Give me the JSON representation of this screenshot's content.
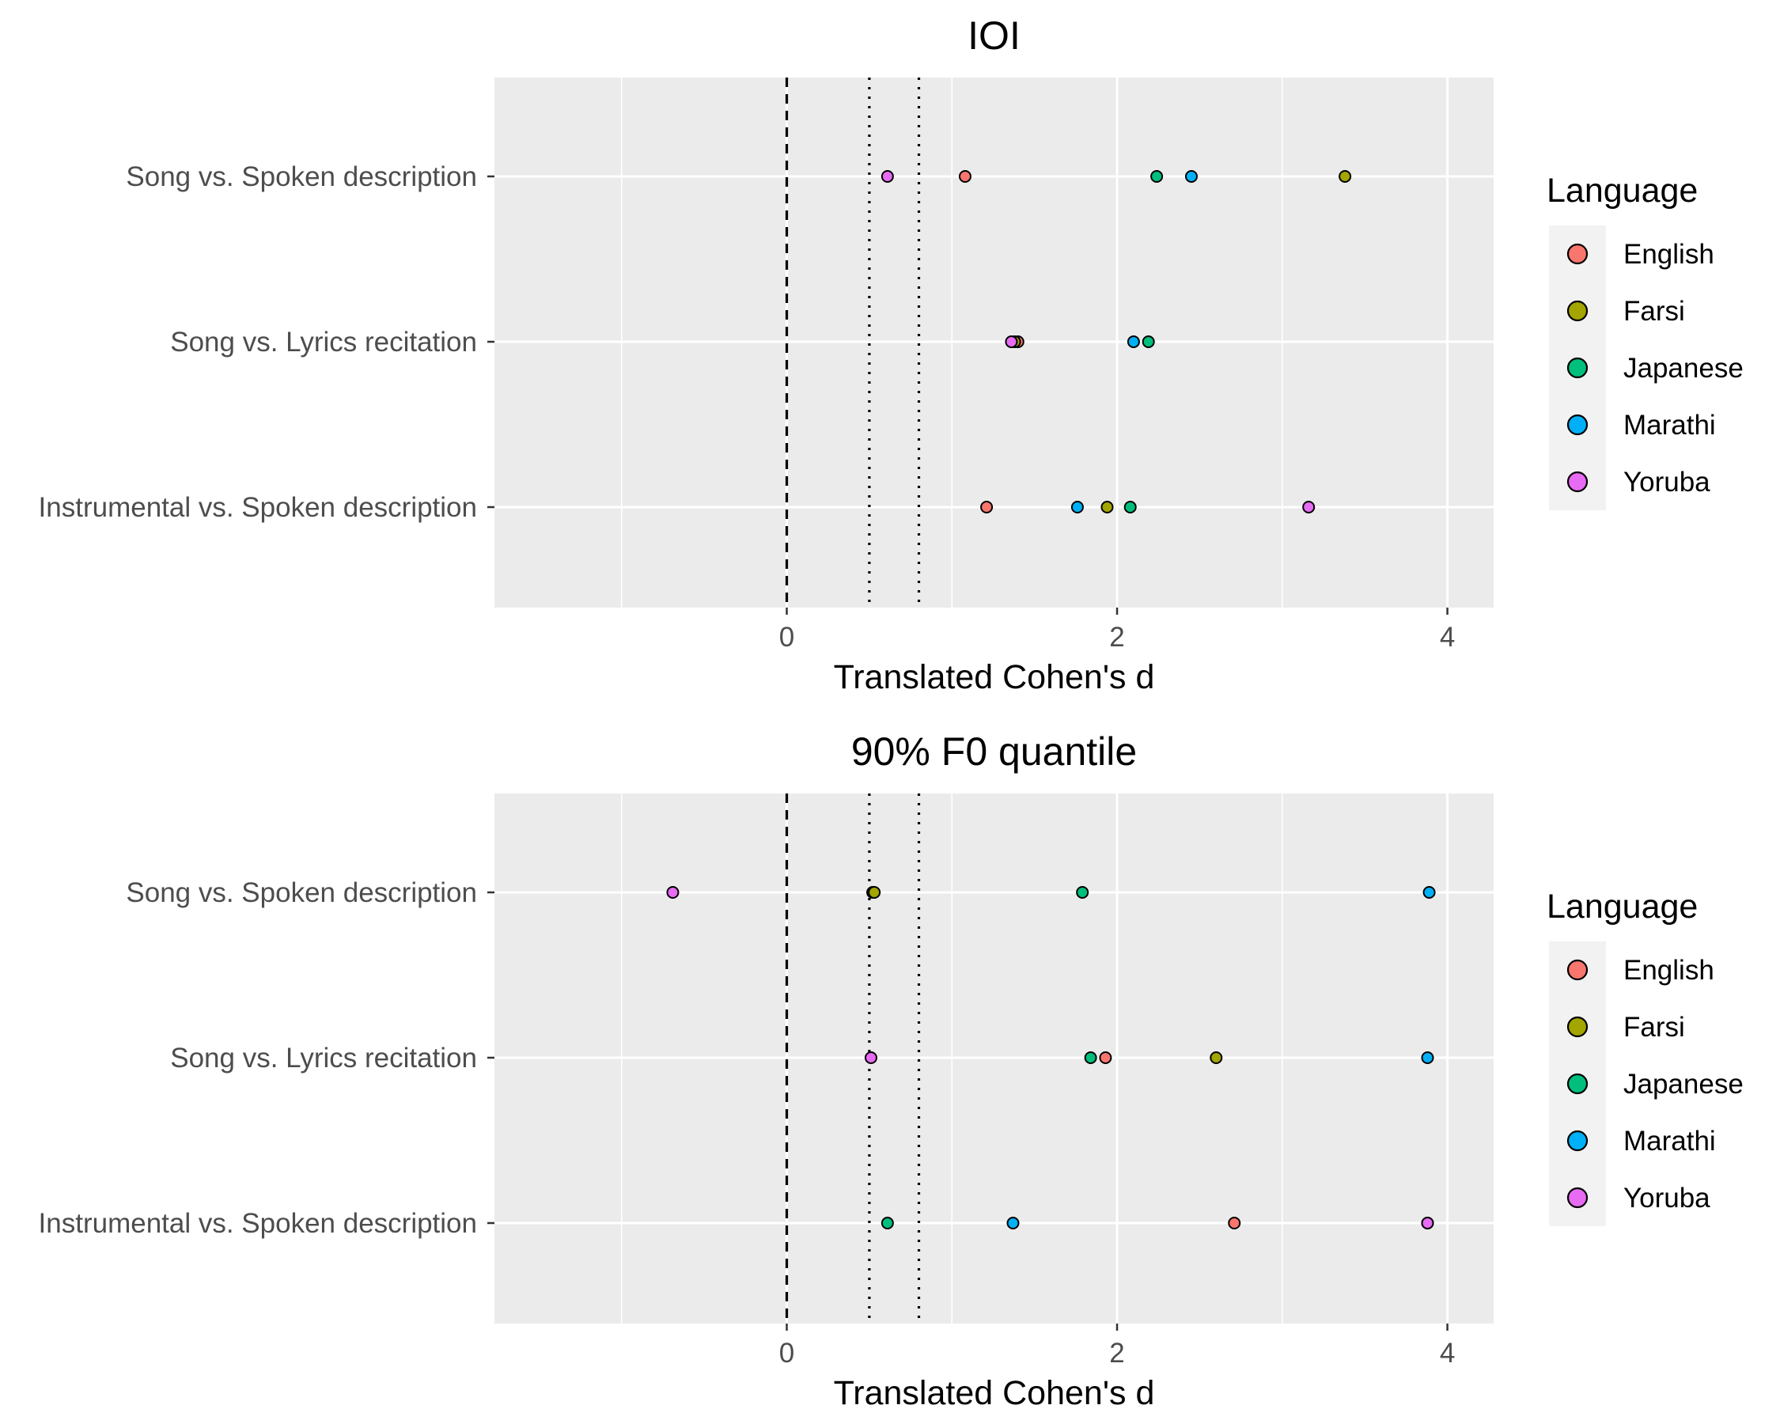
{
  "chart_data": [
    {
      "type": "scatter",
      "title": "IOI",
      "xlabel": "Translated Cohen's d",
      "ylabel": "",
      "xlim": [
        -1.77,
        4.28
      ],
      "x_ticks": [
        0,
        2,
        4
      ],
      "x_minor_grid": [
        -1,
        1,
        3
      ],
      "categories": [
        "Song vs. Spoken description",
        "Song vs. Lyrics recitation",
        "Instrumental vs. Spoken description"
      ],
      "reference_lines": [
        {
          "x": 0,
          "style": "dashed"
        },
        {
          "x": 0.5,
          "style": "dotted"
        },
        {
          "x": 0.8,
          "style": "dotted"
        }
      ],
      "series": [
        {
          "name": "English",
          "color": "#F8766D",
          "values": [
            1.08,
            1.4,
            1.21
          ]
        },
        {
          "name": "Farsi",
          "color": "#A3A500",
          "values": [
            3.38,
            1.38,
            1.94
          ]
        },
        {
          "name": "Japanese",
          "color": "#00BF7D",
          "values": [
            2.24,
            2.19,
            2.08
          ]
        },
        {
          "name": "Marathi",
          "color": "#00B0F6",
          "values": [
            2.45,
            2.1,
            1.76
          ]
        },
        {
          "name": "Yoruba",
          "color": "#E76BF3",
          "values": [
            0.61,
            1.36,
            3.16
          ]
        }
      ],
      "legend": {
        "title": "Language",
        "position": "right"
      },
      "grid": true
    },
    {
      "type": "scatter",
      "title": "90% F0 quantile",
      "xlabel": "Translated Cohen's d",
      "ylabel": "",
      "xlim": [
        -1.77,
        4.28
      ],
      "x_ticks": [
        0,
        2,
        4
      ],
      "x_minor_grid": [
        -1,
        1,
        3
      ],
      "categories": [
        "Song vs. Spoken description",
        "Song vs. Lyrics recitation",
        "Instrumental vs. Spoken description"
      ],
      "reference_lines": [
        {
          "x": 0,
          "style": "dashed"
        },
        {
          "x": 0.5,
          "style": "dotted"
        },
        {
          "x": 0.8,
          "style": "dotted"
        }
      ],
      "series": [
        {
          "name": "English",
          "color": "#F8766D",
          "values": [
            0.52,
            1.93,
            2.71
          ]
        },
        {
          "name": "Farsi",
          "color": "#A3A500",
          "values": [
            0.53,
            2.6,
            3.88
          ]
        },
        {
          "name": "Japanese",
          "color": "#00BF7D",
          "values": [
            1.79,
            1.84,
            0.61
          ]
        },
        {
          "name": "Marathi",
          "color": "#00B0F6",
          "values": [
            3.89,
            3.88,
            1.37
          ]
        },
        {
          "name": "Yoruba",
          "color": "#E76BF3",
          "values": [
            -0.69,
            0.51,
            3.88
          ]
        }
      ],
      "legend": {
        "title": "Language",
        "position": "right"
      },
      "grid": true
    }
  ]
}
